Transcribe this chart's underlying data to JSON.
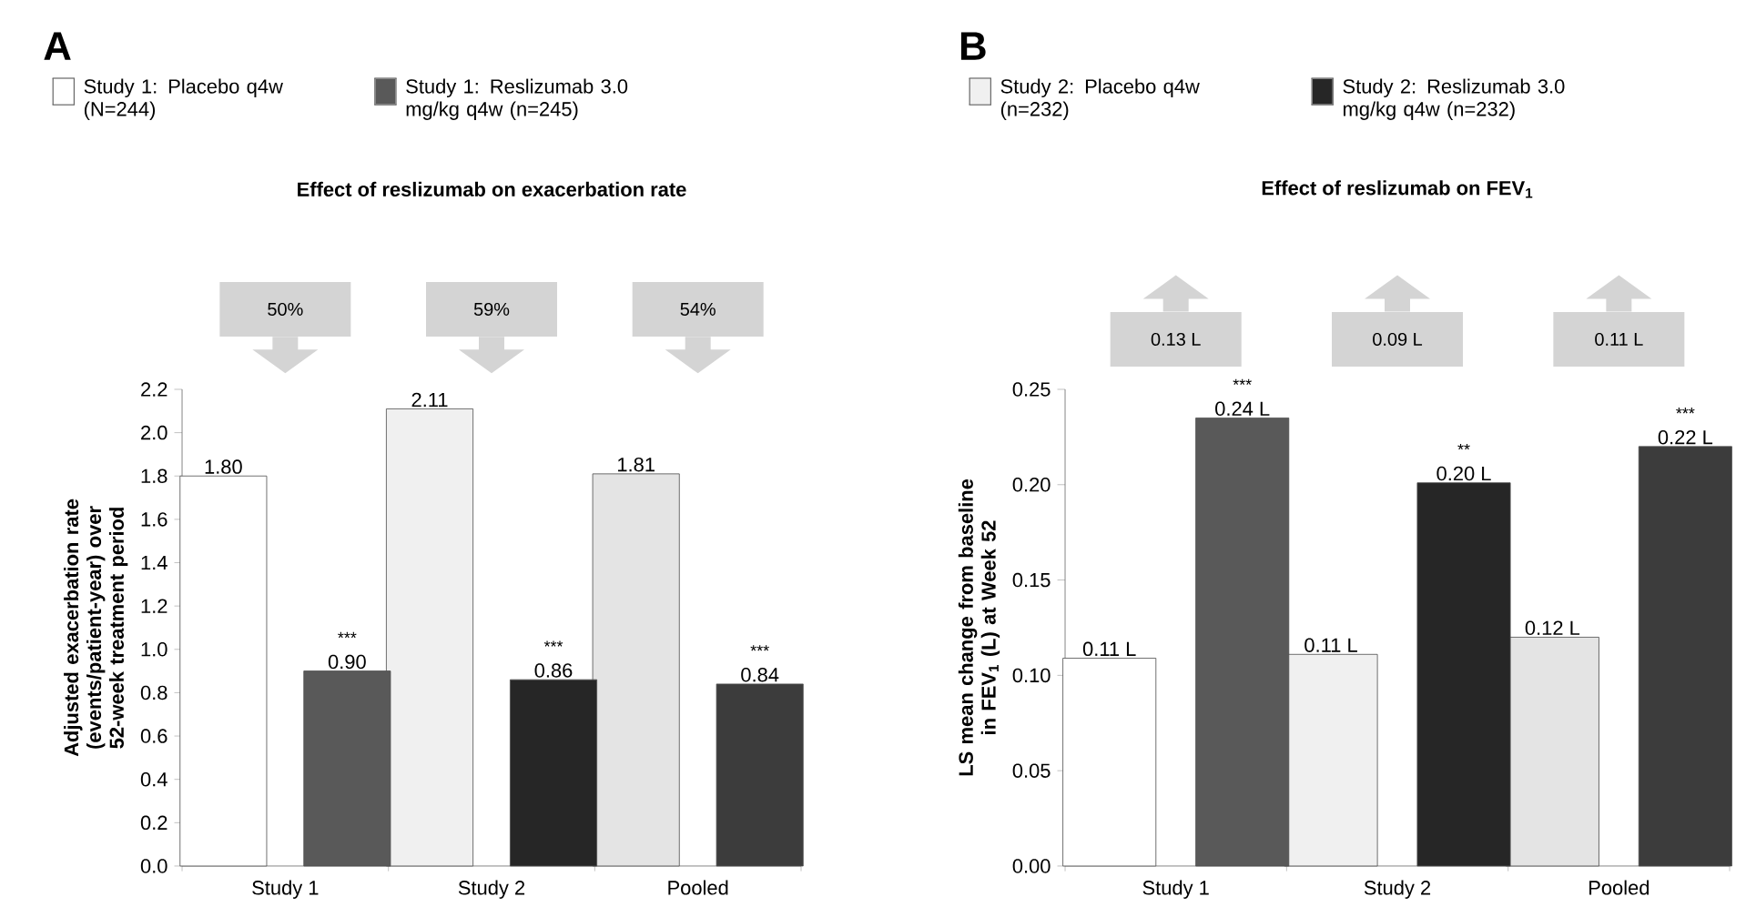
{
  "chart_data": [
    {
      "type": "bar",
      "title": "Effect of reslizumab on exacerbation rate",
      "ylabel": "Adjusted exacerbation rate (events/patient-year) over 52-week treatment period",
      "categories": [
        "Study 1",
        "Study 2",
        "Pooled"
      ],
      "series": [
        {
          "values": [
            1.8,
            2.11,
            1.81
          ],
          "colors": [
            "#ffffff",
            "#f0f0f0",
            "#e4e4e4"
          ],
          "value_labels": [
            "1.80",
            "2.11",
            "1.81"
          ]
        },
        {
          "values": [
            0.9,
            0.86,
            0.84
          ],
          "colors": [
            "#595959",
            "#262626",
            "#3c3c3c"
          ],
          "value_labels": [
            "0.90",
            "0.86",
            "0.84"
          ]
        }
      ],
      "ylim": [
        0,
        2.2
      ],
      "yticks": [
        {
          "value": 0,
          "label": "0.0"
        },
        {
          "value": 0.2,
          "label": "0.2"
        },
        {
          "value": 0.4,
          "label": "0.4"
        },
        {
          "value": 0.6,
          "label": "0.6"
        },
        {
          "value": 0.8,
          "label": "0.8"
        },
        {
          "value": 1.0,
          "label": "1.0"
        },
        {
          "value": 1.2,
          "label": "1.2"
        },
        {
          "value": 1.4,
          "label": "1.4"
        },
        {
          "value": 1.6,
          "label": "1.6"
        },
        {
          "value": 1.8,
          "label": "1.8"
        },
        {
          "value": 2.0,
          "label": "2.0"
        },
        {
          "value": 2.2,
          "label": "2.2"
        }
      ],
      "annotations": [
        "A",
        "Study 1: Placebo q4w (N=244)",
        "Study 1: Reslizumab 3.0 mg/kg q4w (n=245)",
        "50%",
        "59%",
        "54%",
        "***",
        "***",
        "***"
      ]
    },
    {
      "type": "bar",
      "title": "Effect of reslizumab on FEV$_{1}$",
      "ylabel": "LS mean change from baseline in FEV$_{1}$ (L) at Week 52",
      "categories": [
        "Study 1",
        "Study 2",
        "Pooled"
      ],
      "series": [
        {
          "values": [
            0.109,
            0.111,
            0.12
          ],
          "colors": [
            "#ffffff",
            "#f0f0f0",
            "#e4e4e4"
          ],
          "value_labels": [
            "0.11 L",
            "0.11 L",
            "0.12 L"
          ]
        },
        {
          "values": [
            0.235,
            0.201,
            0.22
          ],
          "colors": [
            "#595959",
            "#262626",
            "#3c3c3c"
          ],
          "value_labels": [
            "0.24 L",
            "0.20 L",
            "0.22 L"
          ]
        }
      ],
      "ylim": [
        0,
        0.25
      ],
      "yticks": [
        {
          "value": 0,
          "label": "0.00"
        },
        {
          "value": 0.05,
          "label": "0.05"
        },
        {
          "value": 0.1,
          "label": "0.10"
        },
        {
          "value": 0.15,
          "label": "0.15"
        },
        {
          "value": 0.2,
          "label": "0.20"
        },
        {
          "value": 0.25,
          "label": "0.25"
        }
      ],
      "annotations": [
        "B",
        "Study 2: Placebo q4w (n=232)",
        "Study 2: Reslizumab 3.0 mg/kg q4w (n=232)",
        "0.13  L",
        "0.09  L",
        "0.11  L",
        "***",
        "**",
        "***"
      ]
    }
  ]
}
